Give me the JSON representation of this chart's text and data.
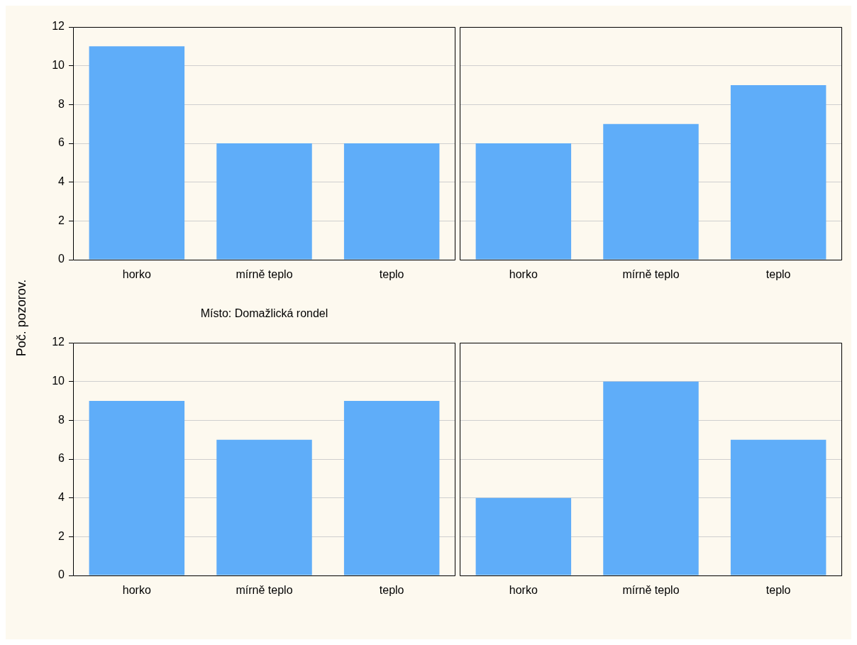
{
  "chart_data": [
    {
      "type": "bar",
      "xlabel": "Místo: Domažlická rondel",
      "ylabel": "Poč. pozorov.",
      "categories": [
        "horko",
        "mírně teplo",
        "teplo"
      ],
      "values": [
        11,
        6,
        6
      ],
      "color": "#5fadf9",
      "ylim": [
        0,
        12
      ],
      "yticks": [
        0,
        2,
        4,
        6,
        8,
        10,
        12
      ],
      "grid": "y"
    },
    {
      "type": "bar",
      "categories": [
        "horko",
        "mírně teplo",
        "teplo"
      ],
      "values": [
        6,
        7,
        9
      ],
      "color": "#5fadf9",
      "ylim": [
        0,
        12
      ],
      "yticks": [
        0,
        2,
        4,
        6,
        8,
        10,
        12
      ],
      "grid": "y",
      "tick_labels": "x"
    },
    {
      "type": "bar",
      "categories": [
        "horko",
        "mírně teplo",
        "teplo"
      ],
      "values": [
        9,
        7,
        9
      ],
      "color": "#5fadf9",
      "ylim": [
        0,
        12
      ],
      "yticks": [
        0,
        2,
        4,
        6,
        8,
        10,
        12
      ],
      "grid": "y"
    },
    {
      "type": "bar",
      "categories": [
        "horko",
        "mírně teplo",
        "teplo"
      ],
      "values": [
        4,
        10,
        7
      ],
      "color": "#5fadf9",
      "ylim": [
        0,
        12
      ],
      "yticks": [
        0,
        2,
        4,
        6,
        8,
        10,
        12
      ],
      "grid": "y",
      "tick_labels": "x"
    }
  ]
}
